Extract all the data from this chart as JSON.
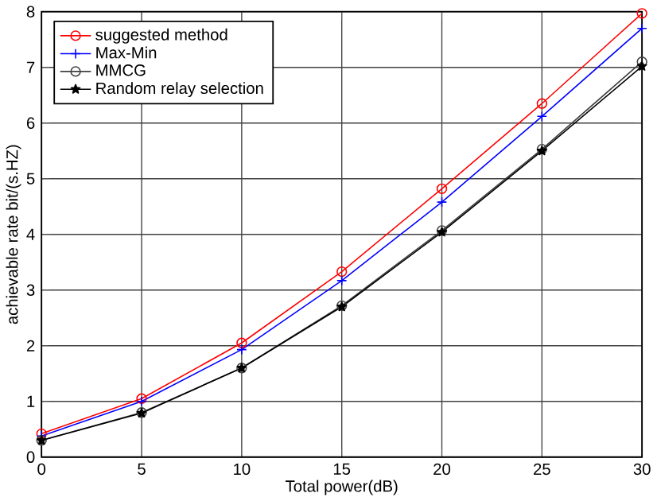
{
  "chart_data": {
    "type": "line",
    "xlabel": "Total power(dB)",
    "ylabel": "achievable rate bit/(s.HZ)",
    "x": [
      0,
      5,
      10,
      15,
      20,
      25,
      30
    ],
    "xlim": [
      0,
      30
    ],
    "xticks": [
      0,
      5,
      10,
      15,
      20,
      25,
      30
    ],
    "ylim": [
      0,
      8
    ],
    "yticks": [
      0,
      1,
      2,
      3,
      4,
      5,
      6,
      7,
      8
    ],
    "grid": true,
    "legend": "top left",
    "line_style": "solid",
    "series": [
      {
        "name": "suggested method",
        "color": "#ff0000",
        "marker": "circle",
        "values": [
          0.42,
          1.05,
          2.05,
          3.33,
          4.82,
          6.35,
          7.97
        ]
      },
      {
        "name": "Max-Min",
        "color": "#0000ff",
        "marker": "cross",
        "values": [
          0.38,
          1.0,
          1.93,
          3.17,
          4.58,
          6.12,
          7.7
        ]
      },
      {
        "name": "MMCG",
        "color": "#404040",
        "marker": "circle",
        "values": [
          0.3,
          0.8,
          1.6,
          2.72,
          4.07,
          5.53,
          7.1
        ]
      },
      {
        "name": "Random relay selection",
        "color": "#000000",
        "marker": "star",
        "values": [
          0.3,
          0.79,
          1.6,
          2.7,
          4.04,
          5.5,
          7.02
        ]
      }
    ]
  }
}
